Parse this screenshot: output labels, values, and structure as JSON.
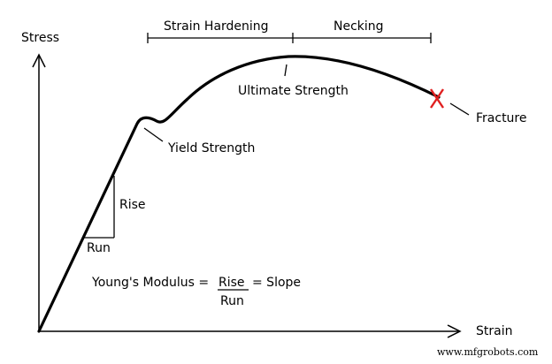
{
  "axes": {
    "y_label": "Stress",
    "x_label": "Strain"
  },
  "regions": {
    "strain_hardening": "Strain Hardening",
    "necking": "Necking"
  },
  "points": {
    "ultimate_strength": "Ultimate Strength",
    "yield_strength": "Yield Strength",
    "fracture": "Fracture"
  },
  "slope_triangle": {
    "rise": "Rise",
    "run": "Run"
  },
  "formula": {
    "lhs": "Young's Modulus =",
    "numerator": "Rise",
    "denominator": "Run",
    "rhs": "= Slope"
  },
  "colors": {
    "curve": "#000000",
    "fracture_marker": "#e02020"
  },
  "watermark": "www.mfgrobots.com"
}
